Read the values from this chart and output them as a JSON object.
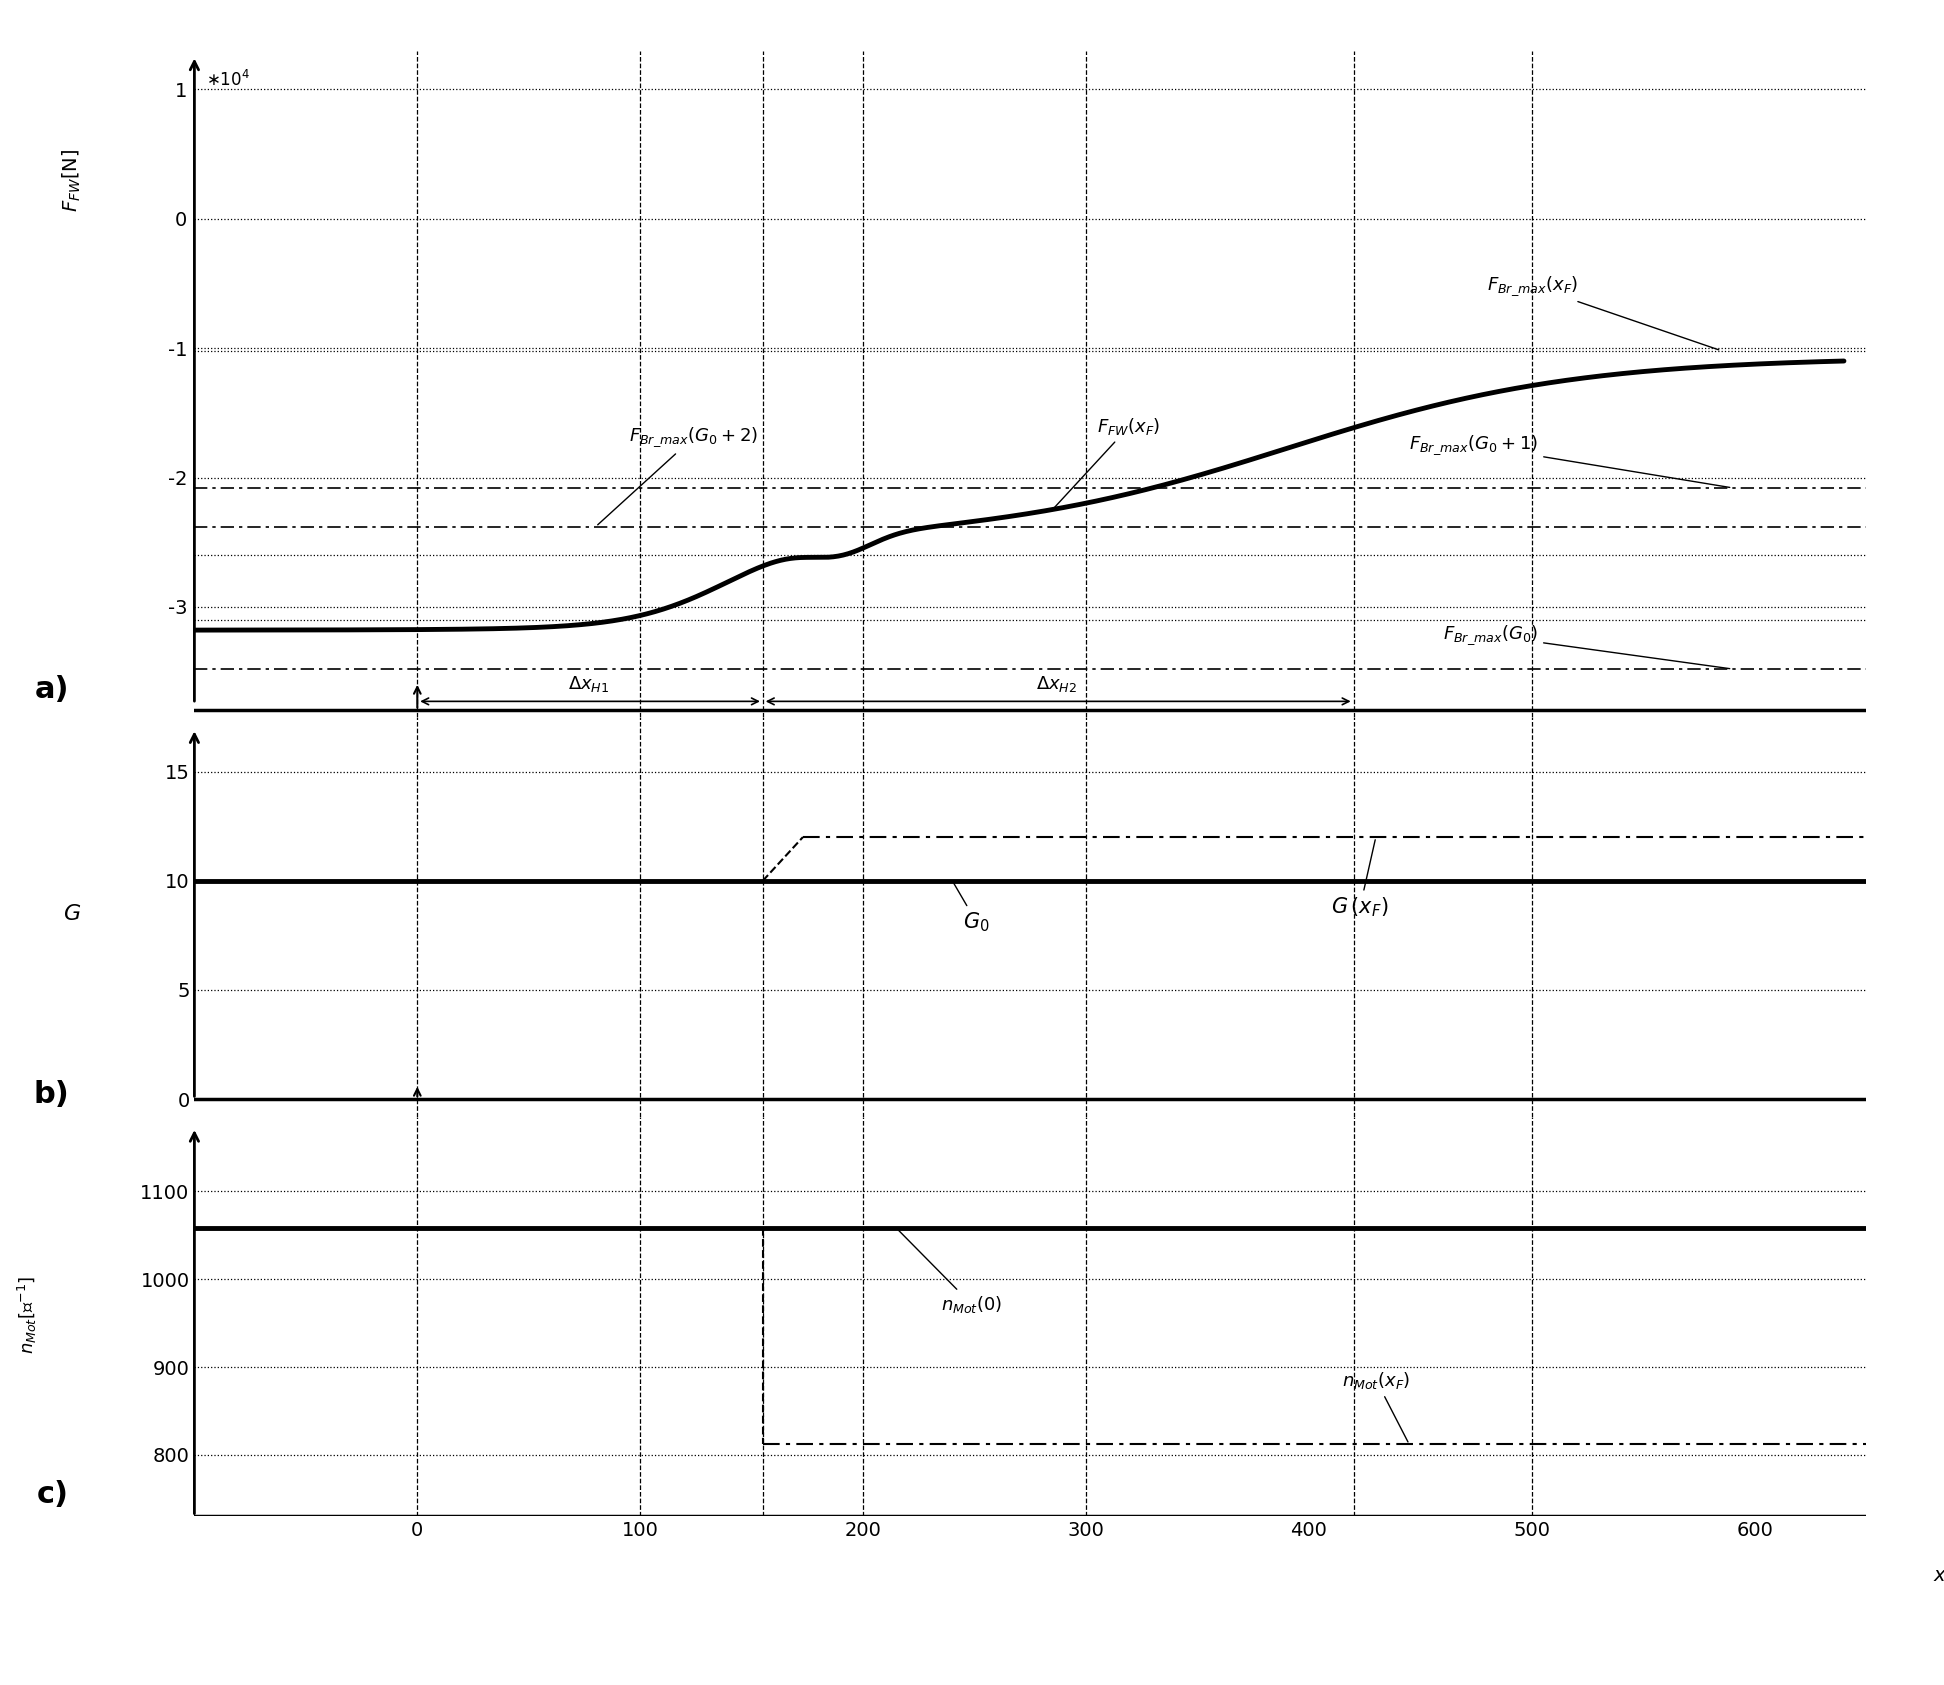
{
  "x_min": -100,
  "x_max": 650,
  "x_ticks": [
    0,
    100,
    200,
    300,
    400,
    500,
    600
  ],
  "x_label": "x_F [m]",
  "panel_a": {
    "ylim": [
      -3.85,
      1.3
    ],
    "yticks": [
      -3,
      -2,
      -1,
      0,
      1
    ],
    "hlines": {
      "FBr_max_xF": -1.02,
      "FBr_max_G0p1": -2.08,
      "FBr_max_G0p2": -2.38,
      "FBr_max_G0": -3.48
    },
    "extra_dotted": [
      -2.6,
      -3.1
    ],
    "delta_xH1_start": 0,
    "delta_xH1_end": 155,
    "delta_xH2_start": 155,
    "delta_xH2_end": 420
  },
  "panel_b": {
    "ylim": [
      -0.8,
      17.5
    ],
    "yticks": [
      0,
      5,
      10,
      15
    ],
    "G0_level": 10,
    "GxF_level": 12,
    "G_transition_x": 155
  },
  "panel_c": {
    "ylim": [
      730,
      1185
    ],
    "yticks": [
      800,
      900,
      1000,
      1100
    ],
    "nMot_const": 1058,
    "nMot_xF_level": 812,
    "nMot_transition_x": 155
  },
  "vlines_x": [
    0,
    100,
    155,
    200,
    300,
    420,
    500
  ],
  "bg_color": "#ffffff",
  "line_color": "#000000"
}
